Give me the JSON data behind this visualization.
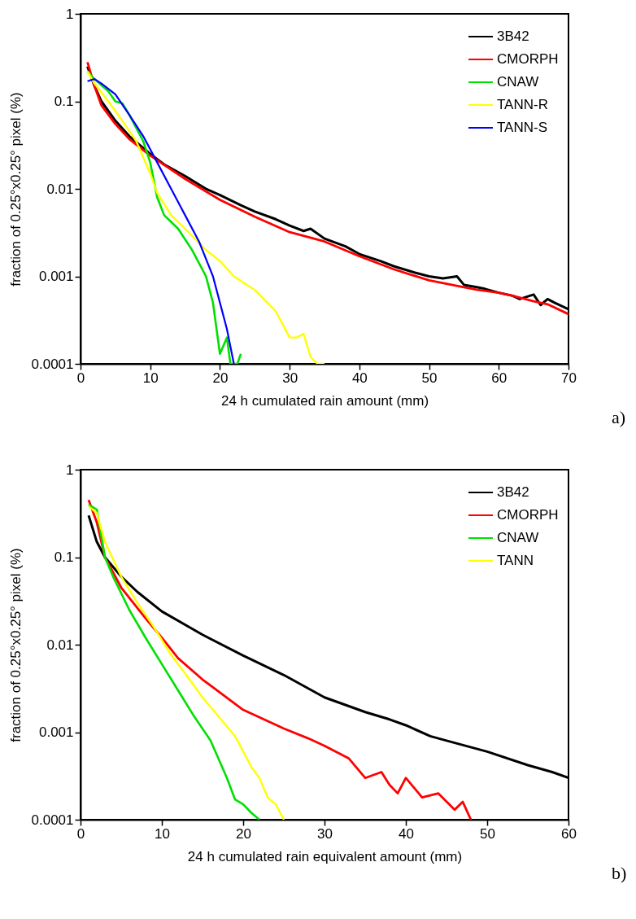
{
  "chart_data": [
    {
      "type": "line",
      "xlabel": "24 h cumulated rain amount (mm)",
      "ylabel": "fraction of 0.25°x0.25° pixel (%)",
      "log": true,
      "xlim": [
        0,
        70
      ],
      "xticks": [
        0,
        10,
        20,
        30,
        40,
        50,
        60,
        70
      ],
      "ylim": [
        0.0001,
        1
      ],
      "yticks": [
        0.0001,
        0.001,
        0.01,
        0.1,
        1
      ],
      "legend": "top right",
      "annotations": [
        "a)"
      ],
      "series": [
        {
          "name": "3B42",
          "color": "#000000",
          "x": [
            1,
            2,
            3,
            5,
            7,
            10,
            12,
            15,
            18,
            20,
            23,
            25,
            28,
            30,
            32,
            33,
            35,
            38,
            40,
            43,
            45,
            48,
            50,
            52,
            54,
            55,
            57,
            58,
            60,
            62,
            63,
            65,
            66,
            67,
            68,
            70
          ],
          "values": [
            0.25,
            0.15,
            0.1,
            0.06,
            0.04,
            0.025,
            0.019,
            0.014,
            0.01,
            0.0085,
            0.0065,
            0.0055,
            0.0045,
            0.0038,
            0.0033,
            0.0035,
            0.0027,
            0.0022,
            0.0018,
            0.0015,
            0.0013,
            0.0011,
            0.001,
            0.00095,
            0.001,
            0.0008,
            0.00075,
            0.00072,
            0.00065,
            0.0006,
            0.00055,
            0.00062,
            0.00047,
            0.00055,
            0.0005,
            0.00042
          ]
        },
        {
          "name": "CMORPH",
          "color": "#ff0000",
          "x": [
            1,
            2,
            3,
            5,
            7,
            10,
            15,
            20,
            25,
            30,
            35,
            40,
            45,
            50,
            55,
            57,
            60,
            62,
            65,
            67,
            70
          ],
          "values": [
            0.28,
            0.15,
            0.09,
            0.055,
            0.037,
            0.024,
            0.013,
            0.0075,
            0.0048,
            0.0032,
            0.0025,
            0.0017,
            0.0012,
            0.0009,
            0.00075,
            0.0007,
            0.00065,
            0.0006,
            0.00052,
            0.00048,
            0.00037
          ]
        },
        {
          "name": "CNAW",
          "color": "#00e000",
          "x": [
            1,
            2,
            4,
            5,
            6,
            7,
            9,
            10,
            11,
            12,
            14,
            16,
            18,
            19,
            20,
            21,
            21.5,
            22.5,
            23
          ],
          "values": [
            0.22,
            0.18,
            0.13,
            0.1,
            0.095,
            0.07,
            0.035,
            0.02,
            0.008,
            0.005,
            0.0035,
            0.002,
            0.001,
            0.0005,
            0.00013,
            0.0002,
            0.0001,
            0.0001,
            0.00013
          ]
        },
        {
          "name": "TANN-R",
          "color": "#ffff00",
          "x": [
            1,
            2,
            4,
            6,
            8,
            10,
            11,
            13,
            15,
            18,
            20,
            22,
            25,
            28,
            30,
            31,
            32,
            33,
            34,
            35
          ],
          "values": [
            0.22,
            0.16,
            0.1,
            0.06,
            0.035,
            0.015,
            0.009,
            0.005,
            0.0035,
            0.002,
            0.0015,
            0.001,
            0.0007,
            0.0004,
            0.0002,
            0.0002,
            0.00022,
            0.00012,
            0.0001,
            0.0001
          ]
        },
        {
          "name": "TANN-S",
          "color": "#0000ff",
          "x": [
            1,
            2,
            3,
            5,
            7,
            9,
            11,
            13,
            15,
            17,
            19,
            20,
            21,
            22
          ],
          "values": [
            0.17,
            0.18,
            0.16,
            0.12,
            0.07,
            0.04,
            0.02,
            0.01,
            0.005,
            0.0025,
            0.001,
            0.0005,
            0.00025,
            0.0001
          ]
        }
      ]
    },
    {
      "type": "line",
      "xlabel": "24 h cumulated rain equivalent amount (mm)",
      "ylabel": "fraction of 0.25°x0.25° pixel (%)",
      "log": true,
      "xlim": [
        0,
        60
      ],
      "xticks": [
        0,
        10,
        20,
        30,
        40,
        50,
        60
      ],
      "ylim": [
        0.0001,
        1
      ],
      "yticks": [
        0.0001,
        0.001,
        0.01,
        0.1,
        1
      ],
      "legend": "top right",
      "annotations": [
        "b)"
      ],
      "series": [
        {
          "name": "3B42",
          "color": "#000000",
          "x": [
            1,
            2,
            3,
            5,
            7,
            10,
            15,
            20,
            25,
            30,
            35,
            38,
            40,
            43,
            45,
            50,
            55,
            58,
            60
          ],
          "values": [
            0.3,
            0.15,
            0.1,
            0.06,
            0.04,
            0.024,
            0.013,
            0.0075,
            0.0045,
            0.0025,
            0.0017,
            0.0014,
            0.0012,
            0.0009,
            0.0008,
            0.0006,
            0.00042,
            0.00035,
            0.0003
          ]
        },
        {
          "name": "CMORPH",
          "color": "#ff0000",
          "x": [
            1,
            2,
            3,
            5,
            8,
            10,
            12,
            15,
            20,
            25,
            28,
            30,
            33,
            35,
            37,
            38,
            39,
            40,
            42,
            44,
            46,
            47,
            48
          ],
          "values": [
            0.45,
            0.25,
            0.1,
            0.045,
            0.02,
            0.012,
            0.007,
            0.004,
            0.0018,
            0.0011,
            0.00085,
            0.0007,
            0.0005,
            0.0003,
            0.00035,
            0.00025,
            0.0002,
            0.0003,
            0.00018,
            0.0002,
            0.00013,
            0.00016,
            0.0001
          ]
        },
        {
          "name": "CNAW",
          "color": "#00e000",
          "x": [
            1,
            2,
            3,
            4,
            6,
            8,
            10,
            12,
            14,
            16,
            18,
            19,
            20,
            21,
            22
          ],
          "values": [
            0.4,
            0.35,
            0.1,
            0.06,
            0.025,
            0.012,
            0.006,
            0.003,
            0.0015,
            0.0008,
            0.0003,
            0.00017,
            0.00015,
            0.00012,
            0.0001
          ]
        },
        {
          "name": "TANN",
          "color": "#ffff00",
          "x": [
            1,
            2,
            3,
            5,
            7,
            9,
            11,
            13,
            15,
            17,
            19,
            21,
            22,
            23,
            24,
            25
          ],
          "values": [
            0.38,
            0.32,
            0.15,
            0.06,
            0.03,
            0.016,
            0.008,
            0.0045,
            0.0025,
            0.0015,
            0.0009,
            0.0004,
            0.0003,
            0.00018,
            0.00015,
            0.0001
          ]
        }
      ]
    }
  ]
}
